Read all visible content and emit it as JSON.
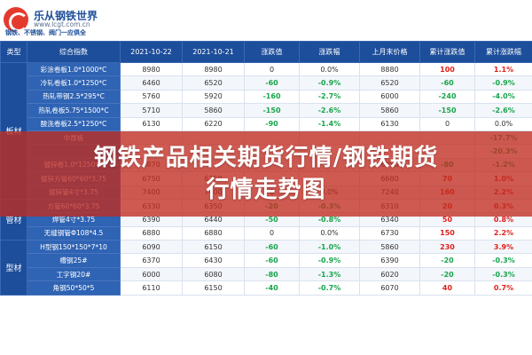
{
  "brand": {
    "name": "乐从钢铁世界",
    "url": "www.lcgt.com.cn",
    "slogan": "钢铁、不锈钢、阀门一应俱全"
  },
  "headers": [
    "类型",
    "综合指数",
    "2021-10-22",
    "2021-10-21",
    "涨跌值",
    "涨跌幅",
    "上月末价格",
    "累计涨跌值",
    "累计涨跌幅"
  ],
  "categories": {
    "plate": "板材",
    "pipe": "管材",
    "section": "型材"
  },
  "rows": [
    {
      "name": "彩涂卷板1.0*1000*C",
      "d1": "8980",
      "d2": "8980",
      "chg": "0",
      "pct": "0.0%",
      "prev": "8880",
      "cchg": "100",
      "cpct": "1.1%",
      "c": "plain",
      "cc": "red"
    },
    {
      "name": "冷轧卷板1.0*1250*C",
      "d1": "6460",
      "d2": "6520",
      "chg": "-60",
      "pct": "-0.9%",
      "prev": "6520",
      "cchg": "-60",
      "cpct": "-0.9%",
      "c": "green",
      "cc": "green"
    },
    {
      "name": "热轧带钢2.5*295*C",
      "d1": "5760",
      "d2": "5920",
      "chg": "-160",
      "pct": "-2.7%",
      "prev": "6000",
      "cchg": "-240",
      "cpct": "-4.0%",
      "c": "green",
      "cc": "green"
    },
    {
      "name": "热轧卷板5.75*1500*C",
      "d1": "5710",
      "d2": "5860",
      "chg": "-150",
      "pct": "-2.6%",
      "prev": "5860",
      "cchg": "-150",
      "cpct": "-2.6%",
      "c": "green",
      "cc": "green"
    },
    {
      "name": "酸洗卷板2.5*1250*C",
      "d1": "6130",
      "d2": "6220",
      "chg": "-90",
      "pct": "-1.4%",
      "prev": "6130",
      "cchg": "0",
      "cpct": "0.0%",
      "c": "green",
      "cc": "plain"
    },
    {
      "name": "中厚板",
      "d1": "",
      "d2": "",
      "chg": "",
      "pct": "",
      "prev": "",
      "cchg": "",
      "cpct": "-17.7%",
      "c": "green",
      "cc": "green"
    },
    {
      "name": "",
      "d1": "",
      "d2": "",
      "chg": "",
      "pct": "",
      "prev": "",
      "cchg": "",
      "cpct": "-20.3%",
      "c": "green",
      "cc": "green"
    },
    {
      "name": "镀锌卷1.0*1250*C",
      "d1": "6870",
      "d2": "",
      "chg": "",
      "pct": "",
      "prev": "6950",
      "cchg": "-80",
      "cpct": "-1.2%",
      "c": "green",
      "cc": "green"
    },
    {
      "name": "镀锌方管60*60*3.75",
      "d1": "6750",
      "d2": "6750",
      "chg": "",
      "pct": "",
      "prev": "6680",
      "cchg": "70",
      "cpct": "1.0%",
      "c": "plain",
      "cc": "red"
    },
    {
      "name": "镀锌管4寸*3.75",
      "d1": "7400",
      "d2": "7400",
      "chg": "0",
      "pct": "0.0%",
      "prev": "7240",
      "cchg": "160",
      "cpct": "2.2%",
      "c": "plain",
      "cc": "red"
    },
    {
      "name": "方管60*60*3.75",
      "d1": "6330",
      "d2": "6350",
      "chg": "-20",
      "pct": "-0.3%",
      "prev": "6310",
      "cchg": "20",
      "cpct": "0.3%",
      "c": "green",
      "cc": "red"
    },
    {
      "name": "焊管4寸*3.75",
      "d1": "6390",
      "d2": "6440",
      "chg": "-50",
      "pct": "-0.8%",
      "prev": "6340",
      "cchg": "50",
      "cpct": "0.8%",
      "c": "green",
      "cc": "red"
    },
    {
      "name": "无缝钢管Φ108*4.5",
      "d1": "6880",
      "d2": "6880",
      "chg": "0",
      "pct": "0.0%",
      "prev": "6730",
      "cchg": "150",
      "cpct": "2.2%",
      "c": "plain",
      "cc": "red"
    },
    {
      "name": "H型钢150*150*7*10",
      "d1": "6090",
      "d2": "6150",
      "chg": "-60",
      "pct": "-1.0%",
      "prev": "5860",
      "cchg": "230",
      "cpct": "3.9%",
      "c": "green",
      "cc": "red"
    },
    {
      "name": "槽钢25#",
      "d1": "6370",
      "d2": "6430",
      "chg": "-60",
      "pct": "-0.9%",
      "prev": "6390",
      "cchg": "-20",
      "cpct": "-0.3%",
      "c": "green",
      "cc": "green"
    },
    {
      "name": "工字钢20#",
      "d1": "6000",
      "d2": "6080",
      "chg": "-80",
      "pct": "-1.3%",
      "prev": "6020",
      "cchg": "-20",
      "cpct": "-0.3%",
      "c": "green",
      "cc": "green"
    },
    {
      "name": "角钢50*50*5",
      "d1": "6110",
      "d2": "6150",
      "chg": "-40",
      "pct": "-0.7%",
      "prev": "6070",
      "cchg": "40",
      "cpct": "0.7%",
      "c": "green",
      "cc": "red"
    }
  ],
  "banner": {
    "line1": "钢铁产品相关期货行情/钢铁期货",
    "line2": "行情走势图"
  },
  "colors": {
    "header_blue": "#1d4e9b",
    "up_red": "#e0201b",
    "down_green": "#18a54c",
    "banner_red": "#c02c20"
  }
}
